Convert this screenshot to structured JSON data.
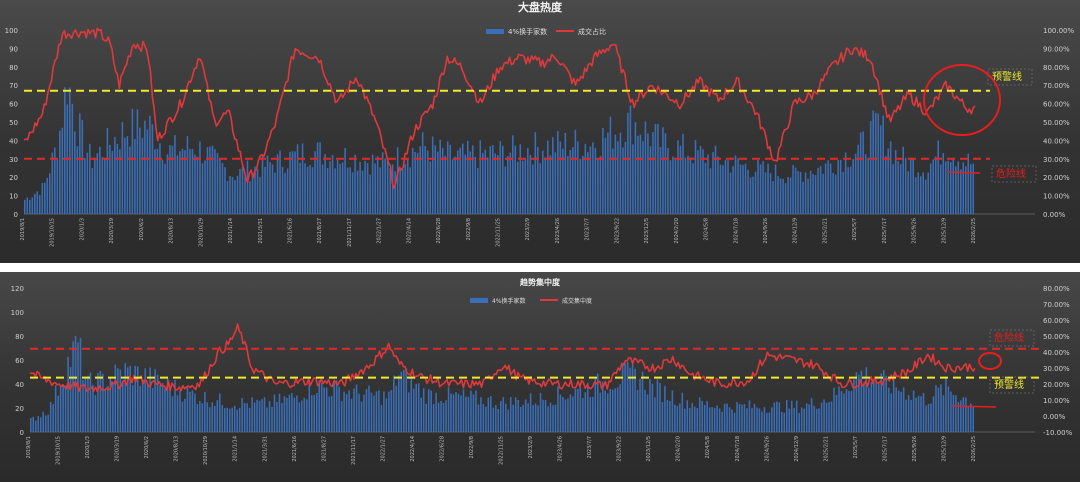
{
  "colors": {
    "bar": "#3a6fb8",
    "line": "#e0393c",
    "warning": "#f0e92a",
    "danger": "#e02a2a",
    "annotation": "#e81e1e",
    "annotation_text_yellow": "#f0e92a"
  },
  "chart_data": [
    {
      "type": "bar+line",
      "title": "大盘热度",
      "legend": [
        "4%换手家数",
        "成交占比"
      ],
      "legend_position": "top-center",
      "y_left": {
        "min": 0,
        "max": 100,
        "ticks": [
          "0",
          "10",
          "20",
          "30",
          "40",
          "50",
          "60",
          "70",
          "80",
          "90",
          "100"
        ]
      },
      "y_right": {
        "min": 0,
        "max": 1,
        "ticks": [
          "0.00%",
          "10.00%",
          "20.00%",
          "30.00%",
          "40.00%",
          "50.00%",
          "60.00%",
          "70.00%",
          "80.00%",
          "90.00%",
          "100.00%"
        ]
      },
      "x_ticks": [
        "2019/8/1",
        "2019/10/15",
        "2020/1/3",
        "2020/3/19",
        "2020/6/2",
        "2020/8/13",
        "2020/10/29",
        "2021/1/14",
        "2021/3/31",
        "2021/6/16",
        "2021/8/27",
        "2021/11/17",
        "2022/1/27",
        "2022/4/14",
        "2022/6/28",
        "2022/9/8",
        "2022/11/25",
        "2023/2/9",
        "2023/4/26",
        "2023/7/7",
        "2023/9/22",
        "2023/12/5",
        "2024/2/20",
        "2024/5/8",
        "2024/7/18",
        "2024/9/26",
        "2024/12/9",
        "2025/2/21",
        "2025/5/7",
        "2025/7/17",
        "2025/9/26",
        "2025/12/9",
        "2026/2/25"
      ],
      "bar_keypoints": [
        [
          0,
          8
        ],
        [
          0.02,
          15
        ],
        [
          0.035,
          40
        ],
        [
          0.045,
          75
        ],
        [
          0.055,
          50
        ],
        [
          0.07,
          30
        ],
        [
          0.09,
          40
        ],
        [
          0.11,
          48
        ],
        [
          0.13,
          50
        ],
        [
          0.15,
          35
        ],
        [
          0.18,
          38
        ],
        [
          0.2,
          30
        ],
        [
          0.22,
          22
        ],
        [
          0.26,
          28
        ],
        [
          0.3,
          35
        ],
        [
          0.34,
          32
        ],
        [
          0.38,
          28
        ],
        [
          0.42,
          38
        ],
        [
          0.45,
          32
        ],
        [
          0.5,
          34
        ],
        [
          0.55,
          38
        ],
        [
          0.6,
          40
        ],
        [
          0.64,
          52
        ],
        [
          0.67,
          40
        ],
        [
          0.72,
          32
        ],
        [
          0.78,
          24
        ],
        [
          0.81,
          22
        ],
        [
          0.84,
          26
        ],
        [
          0.88,
          36
        ],
        [
          0.9,
          50
        ],
        [
          0.92,
          32
        ],
        [
          0.95,
          25
        ],
        [
          0.97,
          38
        ],
        [
          0.99,
          30
        ],
        [
          1.0,
          28
        ]
      ],
      "line_keypoints": [
        [
          0,
          0.38
        ],
        [
          0.02,
          0.55
        ],
        [
          0.04,
          0.98
        ],
        [
          0.06,
          0.99
        ],
        [
          0.08,
          0.98
        ],
        [
          0.09,
          0.93
        ],
        [
          0.1,
          0.7
        ],
        [
          0.115,
          0.93
        ],
        [
          0.13,
          0.9
        ],
        [
          0.14,
          0.4
        ],
        [
          0.165,
          0.6
        ],
        [
          0.185,
          0.87
        ],
        [
          0.2,
          0.5
        ],
        [
          0.215,
          0.55
        ],
        [
          0.235,
          0.18
        ],
        [
          0.25,
          0.3
        ],
        [
          0.265,
          0.5
        ],
        [
          0.285,
          0.9
        ],
        [
          0.31,
          0.85
        ],
        [
          0.33,
          0.6
        ],
        [
          0.35,
          0.75
        ],
        [
          0.37,
          0.5
        ],
        [
          0.39,
          0.15
        ],
        [
          0.41,
          0.45
        ],
        [
          0.43,
          0.6
        ],
        [
          0.445,
          0.85
        ],
        [
          0.46,
          0.8
        ],
        [
          0.48,
          0.6
        ],
        [
          0.5,
          0.8
        ],
        [
          0.52,
          0.85
        ],
        [
          0.545,
          0.82
        ],
        [
          0.56,
          0.86
        ],
        [
          0.58,
          0.7
        ],
        [
          0.6,
          0.85
        ],
        [
          0.62,
          0.93
        ],
        [
          0.64,
          0.6
        ],
        [
          0.66,
          0.7
        ],
        [
          0.69,
          0.6
        ],
        [
          0.71,
          0.72
        ],
        [
          0.73,
          0.62
        ],
        [
          0.75,
          0.72
        ],
        [
          0.77,
          0.55
        ],
        [
          0.79,
          0.28
        ],
        [
          0.81,
          0.6
        ],
        [
          0.83,
          0.65
        ],
        [
          0.85,
          0.8
        ],
        [
          0.87,
          0.9
        ],
        [
          0.89,
          0.85
        ],
        [
          0.91,
          0.5
        ],
        [
          0.93,
          0.65
        ],
        [
          0.95,
          0.55
        ],
        [
          0.97,
          0.7
        ],
        [
          0.99,
          0.58
        ],
        [
          1.0,
          0.57
        ]
      ],
      "reference_lines": [
        {
          "label": "预警线",
          "value": 0.67,
          "color": "warning"
        },
        {
          "label": "危险线",
          "value": 0.3,
          "color": "danger"
        }
      ],
      "annotations": {
        "warning_label": "预警线",
        "danger_label": "危险线"
      }
    },
    {
      "type": "bar+line",
      "title": "趋势集中度",
      "legend": [
        "4%换手家数",
        "成交集中度"
      ],
      "legend_position": "top-center",
      "y_left": {
        "min": 0,
        "max": 120,
        "ticks": [
          "0",
          "20",
          "40",
          "60",
          "80",
          "100",
          "120"
        ]
      },
      "y_right": {
        "min": -0.1,
        "max": 0.8,
        "ticks": [
          "-10.00%",
          "0.00%",
          "10.00%",
          "20.00%",
          "30.00%",
          "40.00%",
          "50.00%",
          "60.00%",
          "70.00%",
          "80.00%"
        ]
      },
      "x_ticks": [
        "2019/8/1",
        "2019/10/15",
        "2020/1/3",
        "2020/3/19",
        "2020/6/2",
        "2020/8/13",
        "2020/10/29",
        "2021/1/14",
        "2021/3/31",
        "2021/6/16",
        "2021/8/27",
        "2021/11/17",
        "2022/1/27",
        "2022/4/14",
        "2022/6/28",
        "2022/9/8",
        "2022/11/25",
        "2023/2/9",
        "2023/4/26",
        "2023/7/7",
        "2023/9/22",
        "2023/12/5",
        "2024/2/20",
        "2024/5/8",
        "2024/7/18",
        "2024/9/26",
        "2024/12/9",
        "2025/2/21",
        "2025/5/7",
        "2025/7/17",
        "2025/9/26",
        "2025/12/9",
        "2026/2/25"
      ],
      "bar_keypoints": [
        [
          0,
          10
        ],
        [
          0.02,
          20
        ],
        [
          0.04,
          60
        ],
        [
          0.05,
          75
        ],
        [
          0.06,
          40
        ],
        [
          0.08,
          45
        ],
        [
          0.1,
          52
        ],
        [
          0.12,
          48
        ],
        [
          0.15,
          38
        ],
        [
          0.18,
          30
        ],
        [
          0.21,
          25
        ],
        [
          0.25,
          24
        ],
        [
          0.28,
          30
        ],
        [
          0.3,
          40
        ],
        [
          0.34,
          34
        ],
        [
          0.38,
          30
        ],
        [
          0.39,
          50
        ],
        [
          0.42,
          32
        ],
        [
          0.46,
          30
        ],
        [
          0.5,
          25
        ],
        [
          0.54,
          28
        ],
        [
          0.58,
          35
        ],
        [
          0.62,
          45
        ],
        [
          0.64,
          50
        ],
        [
          0.66,
          38
        ],
        [
          0.7,
          25
        ],
        [
          0.74,
          22
        ],
        [
          0.78,
          22
        ],
        [
          0.82,
          22
        ],
        [
          0.85,
          30
        ],
        [
          0.88,
          50
        ],
        [
          0.9,
          44
        ],
        [
          0.93,
          35
        ],
        [
          0.95,
          28
        ],
        [
          0.97,
          38
        ],
        [
          1.0,
          25
        ]
      ],
      "line_keypoints": [
        [
          0,
          0.28
        ],
        [
          0.01,
          0.24
        ],
        [
          0.03,
          0.2
        ],
        [
          0.06,
          0.17
        ],
        [
          0.09,
          0.19
        ],
        [
          0.11,
          0.24
        ],
        [
          0.13,
          0.2
        ],
        [
          0.16,
          0.18
        ],
        [
          0.18,
          0.2
        ],
        [
          0.2,
          0.4
        ],
        [
          0.21,
          0.45
        ],
        [
          0.22,
          0.55
        ],
        [
          0.225,
          0.48
        ],
        [
          0.235,
          0.3
        ],
        [
          0.26,
          0.2
        ],
        [
          0.3,
          0.22
        ],
        [
          0.33,
          0.2
        ],
        [
          0.36,
          0.32
        ],
        [
          0.38,
          0.44
        ],
        [
          0.39,
          0.33
        ],
        [
          0.41,
          0.25
        ],
        [
          0.44,
          0.2
        ],
        [
          0.48,
          0.2
        ],
        [
          0.5,
          0.32
        ],
        [
          0.52,
          0.23
        ],
        [
          0.55,
          0.2
        ],
        [
          0.58,
          0.2
        ],
        [
          0.61,
          0.19
        ],
        [
          0.63,
          0.35
        ],
        [
          0.66,
          0.3
        ],
        [
          0.68,
          0.36
        ],
        [
          0.7,
          0.26
        ],
        [
          0.73,
          0.2
        ],
        [
          0.76,
          0.22
        ],
        [
          0.78,
          0.38
        ],
        [
          0.8,
          0.36
        ],
        [
          0.83,
          0.32
        ],
        [
          0.86,
          0.2
        ],
        [
          0.9,
          0.22
        ],
        [
          0.93,
          0.28
        ],
        [
          0.95,
          0.38
        ],
        [
          0.97,
          0.3
        ],
        [
          1.0,
          0.31
        ]
      ],
      "reference_lines": [
        {
          "label": "危险线",
          "value": 0.42,
          "color": "danger"
        },
        {
          "label": "预警线",
          "value": 0.24,
          "color": "warning"
        }
      ],
      "annotations": {
        "warning_label": "预警线",
        "danger_label": "危险线"
      }
    }
  ]
}
